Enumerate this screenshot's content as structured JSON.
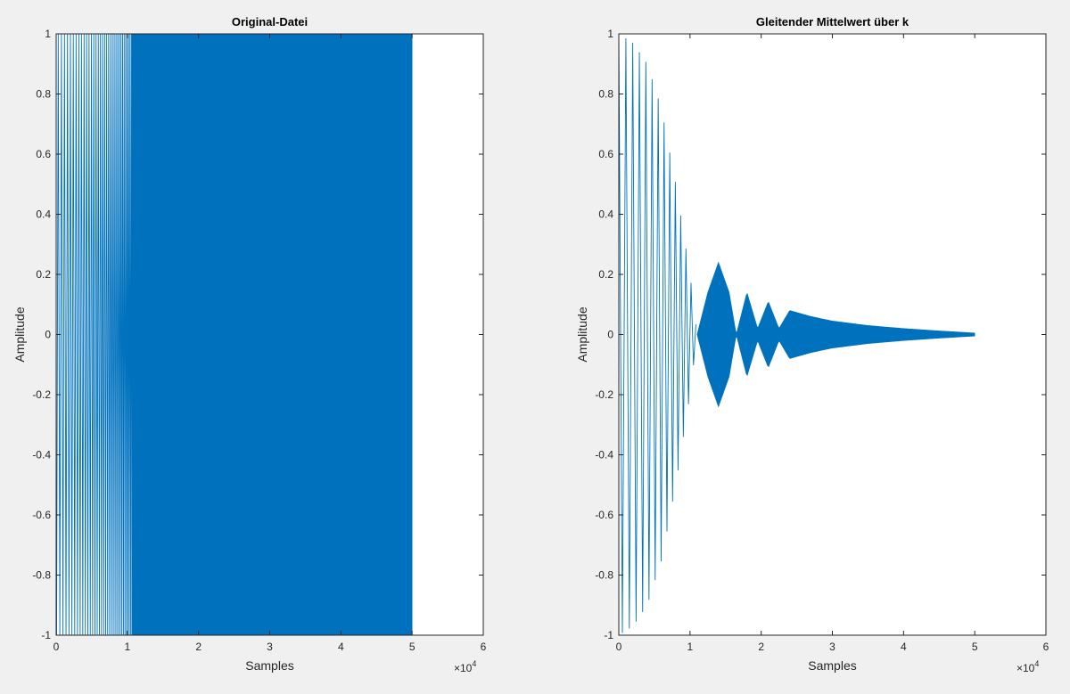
{
  "figure": {
    "background": "#f0f0f0",
    "line_color": "#0072bd"
  },
  "chart_data": [
    {
      "type": "line",
      "title": "Original-Datei",
      "xlabel": "Samples",
      "ylabel": "Amplitude",
      "xlim": [
        0,
        60000
      ],
      "ylim": [
        -1,
        1
      ],
      "x_ticks": [
        "0",
        "1",
        "2",
        "3",
        "4",
        "5",
        "6"
      ],
      "y_ticks": [
        "-1",
        "-0.8",
        "-0.6",
        "-0.4",
        "-0.2",
        "0",
        "0.2",
        "0.4",
        "0.6",
        "0.8",
        "1"
      ],
      "x_exponent": "×10",
      "x_exponent_power": "4",
      "grid": false,
      "series": [
        {
          "signal": "chirp",
          "x_range": [
            0,
            50000
          ],
          "amplitude": 1.0,
          "approx_cycles": 420
        }
      ]
    },
    {
      "type": "line",
      "title": "Gleitender Mittelwert über k",
      "xlabel": "Samples",
      "ylabel": "Amplitude",
      "xlim": [
        0,
        60000
      ],
      "ylim": [
        -1,
        1
      ],
      "x_ticks": [
        "0",
        "1",
        "2",
        "3",
        "4",
        "5",
        "6"
      ],
      "y_ticks": [
        "-1",
        "-0.8",
        "-0.6",
        "-0.4",
        "-0.2",
        "0",
        "0.2",
        "0.4",
        "0.6",
        "0.8",
        "1"
      ],
      "x_exponent": "×10",
      "x_exponent_power": "4",
      "grid": false,
      "series": [
        {
          "signal": "moving-average of chirp",
          "x_range": [
            0,
            50000
          ],
          "envelope_points": [
            [
              0,
              1.0
            ],
            [
              2000,
              0.97
            ],
            [
              4000,
              0.9
            ],
            [
              6000,
              0.75
            ],
            [
              8000,
              0.5
            ],
            [
              10000,
              0.2
            ],
            [
              11000,
              0.0
            ],
            [
              12500,
              0.14
            ],
            [
              14000,
              0.24
            ],
            [
              15500,
              0.14
            ],
            [
              16500,
              0.0
            ],
            [
              18000,
              0.14
            ],
            [
              19500,
              0.02
            ],
            [
              21000,
              0.11
            ],
            [
              22500,
              0.02
            ],
            [
              24000,
              0.08
            ],
            [
              27000,
              0.06
            ],
            [
              30000,
              0.045
            ],
            [
              35000,
              0.03
            ],
            [
              40000,
              0.02
            ],
            [
              45000,
              0.012
            ],
            [
              50000,
              0.005
            ]
          ]
        }
      ]
    }
  ]
}
